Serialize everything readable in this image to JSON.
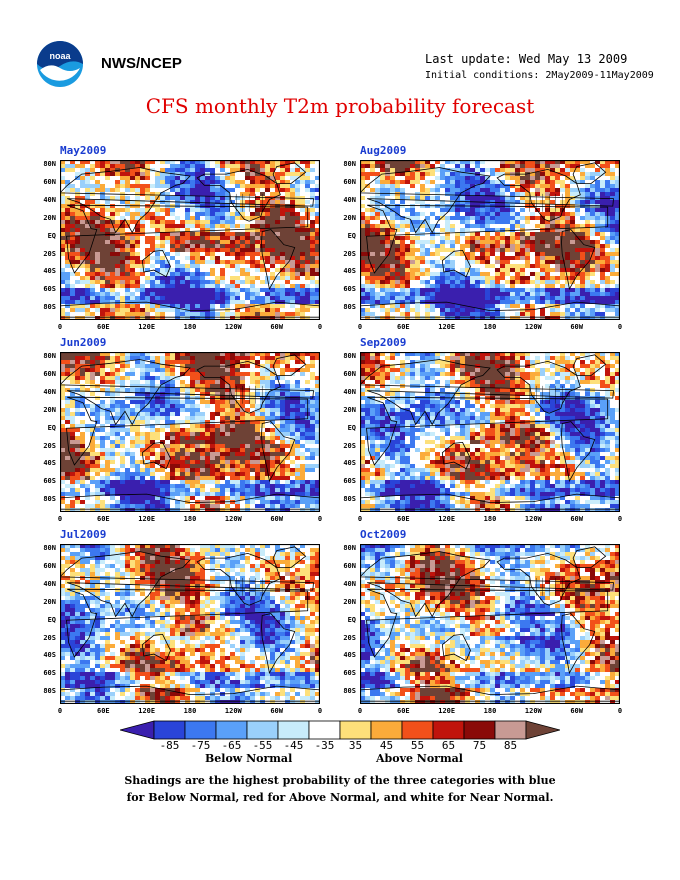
{
  "header": {
    "org": "NWS/NCEP",
    "last_update": "Last update: Wed May 13 2009",
    "initial_conditions": "Initial conditions: 2May2009-11May2009",
    "title": "CFS monthly T2m probability forecast"
  },
  "logo": {
    "icon": "noaa-logo-icon",
    "text": "noaa"
  },
  "axes": {
    "lat_labels": [
      "80N",
      "60N",
      "40N",
      "20N",
      "EQ",
      "20S",
      "40S",
      "60S",
      "80S"
    ],
    "lon_labels": [
      "0",
      "60E",
      "120E",
      "180",
      "120W",
      "60W",
      "0"
    ]
  },
  "panels": [
    {
      "month": "May2009",
      "tint": "red"
    },
    {
      "month": "Aug2009",
      "tint": "mixed"
    },
    {
      "month": "Jun2009",
      "tint": "red"
    },
    {
      "month": "Sep2009",
      "tint": "mixed"
    },
    {
      "month": "Jul2009",
      "tint": "mixed"
    },
    {
      "month": "Oct2009",
      "tint": "mixed"
    }
  ],
  "colorbar": {
    "labels": [
      "-85",
      "-75",
      "-65",
      "-55",
      "-45",
      "-35",
      "35",
      "45",
      "55",
      "65",
      "75",
      "85"
    ],
    "colors": [
      "#3a1fae",
      "#2a44d8",
      "#3c78f0",
      "#5aa0f8",
      "#9ad0fb",
      "#c8ecfb",
      "#ffffff",
      "#fde07a",
      "#fbab3a",
      "#f2501a",
      "#c0140c",
      "#8a0a08",
      "#c89a94",
      "#6e4236"
    ],
    "below_label": "Below Normal",
    "above_label": "Above Normal"
  },
  "notes": {
    "line1": "Shadings are the highest probability of the three categories with blue",
    "line2": "for Below Normal, red for Above Normal, and white for Near Normal."
  }
}
